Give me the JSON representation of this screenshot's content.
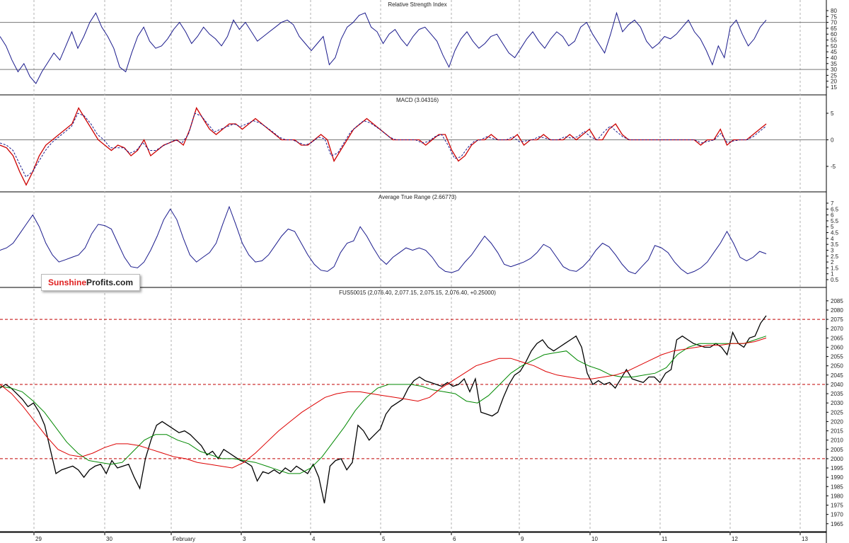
{
  "chart_data": [
    {
      "type": "line",
      "title": "Relative Strength Index",
      "yticks": [
        15,
        20,
        25,
        30,
        35,
        40,
        45,
        50,
        55,
        60,
        65,
        70,
        75,
        80
      ],
      "ylim": [
        12,
        83
      ],
      "levels": [
        30,
        70
      ],
      "series": [
        {
          "values": [
            58,
            50,
            38,
            28,
            35,
            24,
            18,
            28,
            36,
            44,
            38,
            50,
            62,
            48,
            58,
            70,
            78,
            66,
            58,
            48,
            32,
            28,
            44,
            58,
            66,
            54,
            48,
            50,
            56,
            64,
            70,
            62,
            52,
            58,
            66,
            60,
            56,
            50,
            58,
            72,
            64,
            70,
            62,
            54,
            58,
            62,
            66,
            70,
            72,
            68,
            58,
            52,
            46,
            52,
            58,
            34,
            40,
            56,
            66,
            70,
            76,
            78,
            66,
            62,
            52,
            60,
            64,
            56,
            50,
            58,
            64,
            66,
            60,
            54,
            42,
            32,
            46,
            56,
            62,
            54,
            48,
            52,
            58,
            60,
            52,
            44,
            40,
            48,
            56,
            62,
            54,
            48,
            56,
            62,
            58,
            50,
            54,
            66,
            70,
            60,
            52,
            44,
            60,
            78,
            62,
            68,
            72,
            66,
            54,
            48,
            52,
            58,
            56,
            60,
            66,
            72,
            62,
            56,
            46,
            34,
            50,
            40,
            66,
            72,
            60,
            50,
            56,
            66,
            72
          ]
        }
      ],
      "colors": {
        "line": "#1a1a8c",
        "levels": "#777777"
      }
    },
    {
      "type": "line",
      "title": "MACD (3.04316)",
      "yticks": [
        -5,
        0,
        5
      ],
      "ylim": [
        -9,
        7
      ],
      "levels": [
        0
      ],
      "series": [
        {
          "name": "MACD",
          "values": [
            -1,
            -1.5,
            -3,
            -6,
            -8.5,
            -6,
            -3,
            -1,
            0,
            1,
            2,
            3,
            6,
            4,
            2,
            0,
            -1,
            -2,
            -1,
            -1.5,
            -3,
            -2,
            0,
            -3,
            -2,
            -1,
            -0.5,
            0,
            -1,
            2,
            6,
            4,
            2,
            1,
            2,
            3,
            3,
            2,
            3,
            4,
            3,
            2,
            1,
            0,
            0,
            0,
            -1,
            -1,
            0,
            1,
            0,
            -4,
            -2,
            0,
            2,
            3,
            4,
            3,
            2,
            1,
            0,
            0,
            0,
            0,
            0,
            -1,
            0,
            1,
            1,
            -2,
            -4,
            -3,
            -1,
            0,
            0,
            1,
            0,
            0,
            0,
            1,
            -1,
            0,
            0,
            1,
            0,
            0,
            0,
            1,
            0,
            1,
            2,
            0,
            0,
            2,
            3,
            1,
            0,
            0,
            0,
            0,
            0,
            0,
            0,
            0,
            0,
            0,
            0,
            -1,
            0,
            0,
            2,
            -1,
            0,
            0,
            0,
            1,
            2,
            3
          ]
        },
        {
          "name": "Signal",
          "values": [
            -0.6,
            -1,
            -2,
            -4.5,
            -7,
            -6,
            -4,
            -2,
            -0.5,
            0.5,
            1.5,
            2.5,
            5,
            4.5,
            3,
            1,
            0,
            -1.5,
            -1.5,
            -1.5,
            -2.5,
            -2,
            -0.5,
            -2,
            -2,
            -1.2,
            -0.6,
            0,
            -0.6,
            1,
            5,
            4.5,
            3,
            1.5,
            2,
            2.5,
            3,
            2.5,
            3,
            3.6,
            3.2,
            2.4,
            1.5,
            0.5,
            0,
            0,
            -0.5,
            -1,
            -0.5,
            0.5,
            0.2,
            -3,
            -2.5,
            -0.5,
            1.5,
            2.6,
            3.6,
            3.2,
            2.4,
            1.5,
            0.5,
            0,
            0,
            0,
            0,
            -0.6,
            -0.3,
            0.6,
            1,
            -1,
            -3.5,
            -3.2,
            -1.5,
            -0.3,
            0,
            0.6,
            0.2,
            0,
            0,
            0.6,
            -0.4,
            -0.2,
            0,
            0.6,
            0.3,
            0,
            0,
            0.6,
            0.3,
            0.6,
            1.6,
            0.5,
            0,
            1.5,
            2.6,
            1.5,
            0.5,
            0,
            0,
            0,
            0,
            0,
            0,
            0,
            0,
            0,
            0,
            0,
            -0.6,
            -0.3,
            0,
            1.2,
            -0.5,
            -0.2,
            0,
            0,
            0.6,
            1.6,
            2.6
          ]
        }
      ],
      "colors": {
        "macd": "#cc0000",
        "signal": "#1a1a8c",
        "levels": "#777777"
      }
    },
    {
      "type": "line",
      "title": "Average True Range (2.66773)",
      "yticks": [
        0.5,
        1.0,
        1.5,
        2.0,
        2.5,
        3.0,
        3.5,
        4.0,
        4.5,
        5.0,
        5.5,
        6.0,
        6.5,
        7.0
      ],
      "ylim": [
        0.2,
        7.3
      ],
      "series": [
        {
          "values": [
            3.0,
            3.2,
            3.6,
            4.4,
            5.2,
            6.0,
            5.0,
            3.6,
            2.6,
            2.0,
            2.2,
            2.4,
            2.6,
            3.2,
            4.4,
            5.2,
            5.1,
            4.8,
            3.6,
            2.4,
            1.6,
            1.5,
            2.0,
            3.0,
            4.2,
            5.6,
            6.5,
            5.6,
            4.0,
            2.6,
            2.0,
            2.4,
            2.8,
            3.6,
            5.2,
            6.7,
            5.2,
            3.6,
            2.6,
            2.0,
            2.1,
            2.6,
            3.4,
            4.2,
            4.8,
            4.6,
            3.6,
            2.6,
            1.8,
            1.3,
            1.2,
            1.6,
            2.8,
            3.6,
            3.8,
            5.0,
            4.2,
            3.2,
            2.3,
            1.8,
            2.4,
            2.8,
            3.2,
            3.0,
            3.2,
            3.0,
            2.4,
            1.6,
            1.2,
            1.1,
            1.3,
            2.0,
            2.6,
            3.4,
            4.2,
            3.6,
            2.8,
            1.8,
            1.6,
            1.8,
            2.0,
            2.3,
            2.8,
            3.5,
            3.2,
            2.4,
            1.6,
            1.3,
            1.2,
            1.6,
            2.2,
            3.0,
            3.6,
            3.3,
            2.6,
            1.8,
            1.2,
            1.0,
            1.6,
            2.2,
            3.4,
            3.2,
            2.8,
            2.0,
            1.4,
            1.0,
            1.2,
            1.5,
            2.0,
            2.8,
            3.6,
            4.6,
            3.6,
            2.4,
            2.1,
            2.4,
            2.9,
            2.7
          ]
        }
      ],
      "colors": {
        "line": "#1a1a8c"
      }
    },
    {
      "type": "line",
      "title": "FUS50015 (2,076.40, 2,077.15, 2,075.15, 2,076.40, +0.25000)",
      "yticks": [
        1965,
        1970,
        1975,
        1980,
        1985,
        1990,
        1995,
        2000,
        2005,
        2010,
        2015,
        2020,
        2025,
        2030,
        2035,
        2040,
        2045,
        2050,
        2055,
        2060,
        2065,
        2070,
        2075,
        2080,
        2085
      ],
      "ylim": [
        1963,
        2088
      ],
      "levels": [
        2000,
        2040,
        2075
      ],
      "x_ticks": [
        "29",
        "30",
        "February",
        "3",
        "4",
        "5",
        "6",
        "9",
        "10",
        "11",
        "12",
        "13"
      ],
      "series": [
        {
          "name": "Price",
          "values": [
            2038,
            2040,
            2038,
            2035,
            2032,
            2028,
            2030,
            2025,
            2018,
            2005,
            1992,
            1994,
            1995,
            1996,
            1994,
            1990,
            1994,
            1996,
            1997,
            1992,
            1999,
            1995,
            1996,
            1997,
            1990,
            1984,
            2000,
            2010,
            2018,
            2020,
            2018,
            2016,
            2014,
            2015,
            2013,
            2010,
            2007,
            2002,
            2004,
            2000,
            2005,
            2003,
            2001,
            1999,
            1998,
            1996,
            1988,
            1993,
            1992,
            1994,
            1992,
            1995,
            1993,
            1996,
            1994,
            1992,
            1997,
            1990,
            1976,
            1996,
            1999,
            2000,
            1994,
            1998,
            2018,
            2015,
            2010,
            2013,
            2016,
            2024,
            2028,
            2030,
            2032,
            2038,
            2042,
            2044,
            2042,
            2041,
            2040,
            2039,
            2041,
            2039,
            2040,
            2043,
            2036,
            2043,
            2025,
            2024,
            2023,
            2025,
            2033,
            2040,
            2045,
            2047,
            2052,
            2058,
            2062,
            2064,
            2060,
            2058,
            2060,
            2062,
            2064,
            2066,
            2060,
            2046,
            2040,
            2042,
            2040,
            2041,
            2038,
            2043,
            2048,
            2043,
            2042,
            2041,
            2044,
            2044,
            2041,
            2046,
            2048,
            2064,
            2066,
            2064,
            2062,
            2061,
            2060,
            2060,
            2062,
            2060,
            2056,
            2068,
            2062,
            2060,
            2065,
            2066,
            2073,
            2077
          ]
        },
        {
          "name": "MA (short)",
          "values": [
            2039,
            2038,
            2036,
            2031,
            2025,
            2017,
            2009,
            2003,
            1999,
            1998,
            1997,
            1998,
            2004,
            2010,
            2013,
            2013,
            2010,
            2008,
            2004,
            2002,
            2000,
            2000,
            1999,
            1998,
            1996,
            1994,
            1992,
            1992,
            1995,
            2001,
            2009,
            2017,
            2026,
            2033,
            2038,
            2040,
            2040,
            2040,
            2039,
            2037,
            2036,
            2035,
            2031,
            2030,
            2034,
            2040,
            2046,
            2050,
            2053,
            2056,
            2057,
            2058,
            2053,
            2050,
            2048,
            2045,
            2044,
            2044,
            2045,
            2046,
            2049,
            2056,
            2060,
            2062,
            2062,
            2062,
            2062,
            2062,
            2064,
            2066
          ]
        },
        {
          "name": "MA (long)",
          "values": [
            2040,
            2035,
            2028,
            2020,
            2012,
            2005,
            2002,
            2001,
            2003,
            2006,
            2008,
            2008,
            2007,
            2005,
            2003,
            2001,
            2000,
            1998,
            1997,
            1996,
            1995,
            1998,
            2003,
            2009,
            2015,
            2020,
            2025,
            2029,
            2033,
            2035,
            2036,
            2036,
            2035,
            2034,
            2033,
            2032,
            2031,
            2033,
            2038,
            2042,
            2046,
            2050,
            2052,
            2054,
            2054,
            2052,
            2050,
            2047,
            2045,
            2044,
            2043,
            2043,
            2044,
            2045,
            2047,
            2050,
            2053,
            2056,
            2058,
            2059,
            2060,
            2061,
            2061,
            2062,
            2062,
            2063,
            2065
          ]
        }
      ],
      "colors": {
        "price": "#000000",
        "ma_short": "#008800",
        "ma_long": "#dd0000",
        "levels": "#c00000"
      }
    }
  ],
  "brand": {
    "part1": "Sunshine",
    "part2": "Profits.com"
  }
}
